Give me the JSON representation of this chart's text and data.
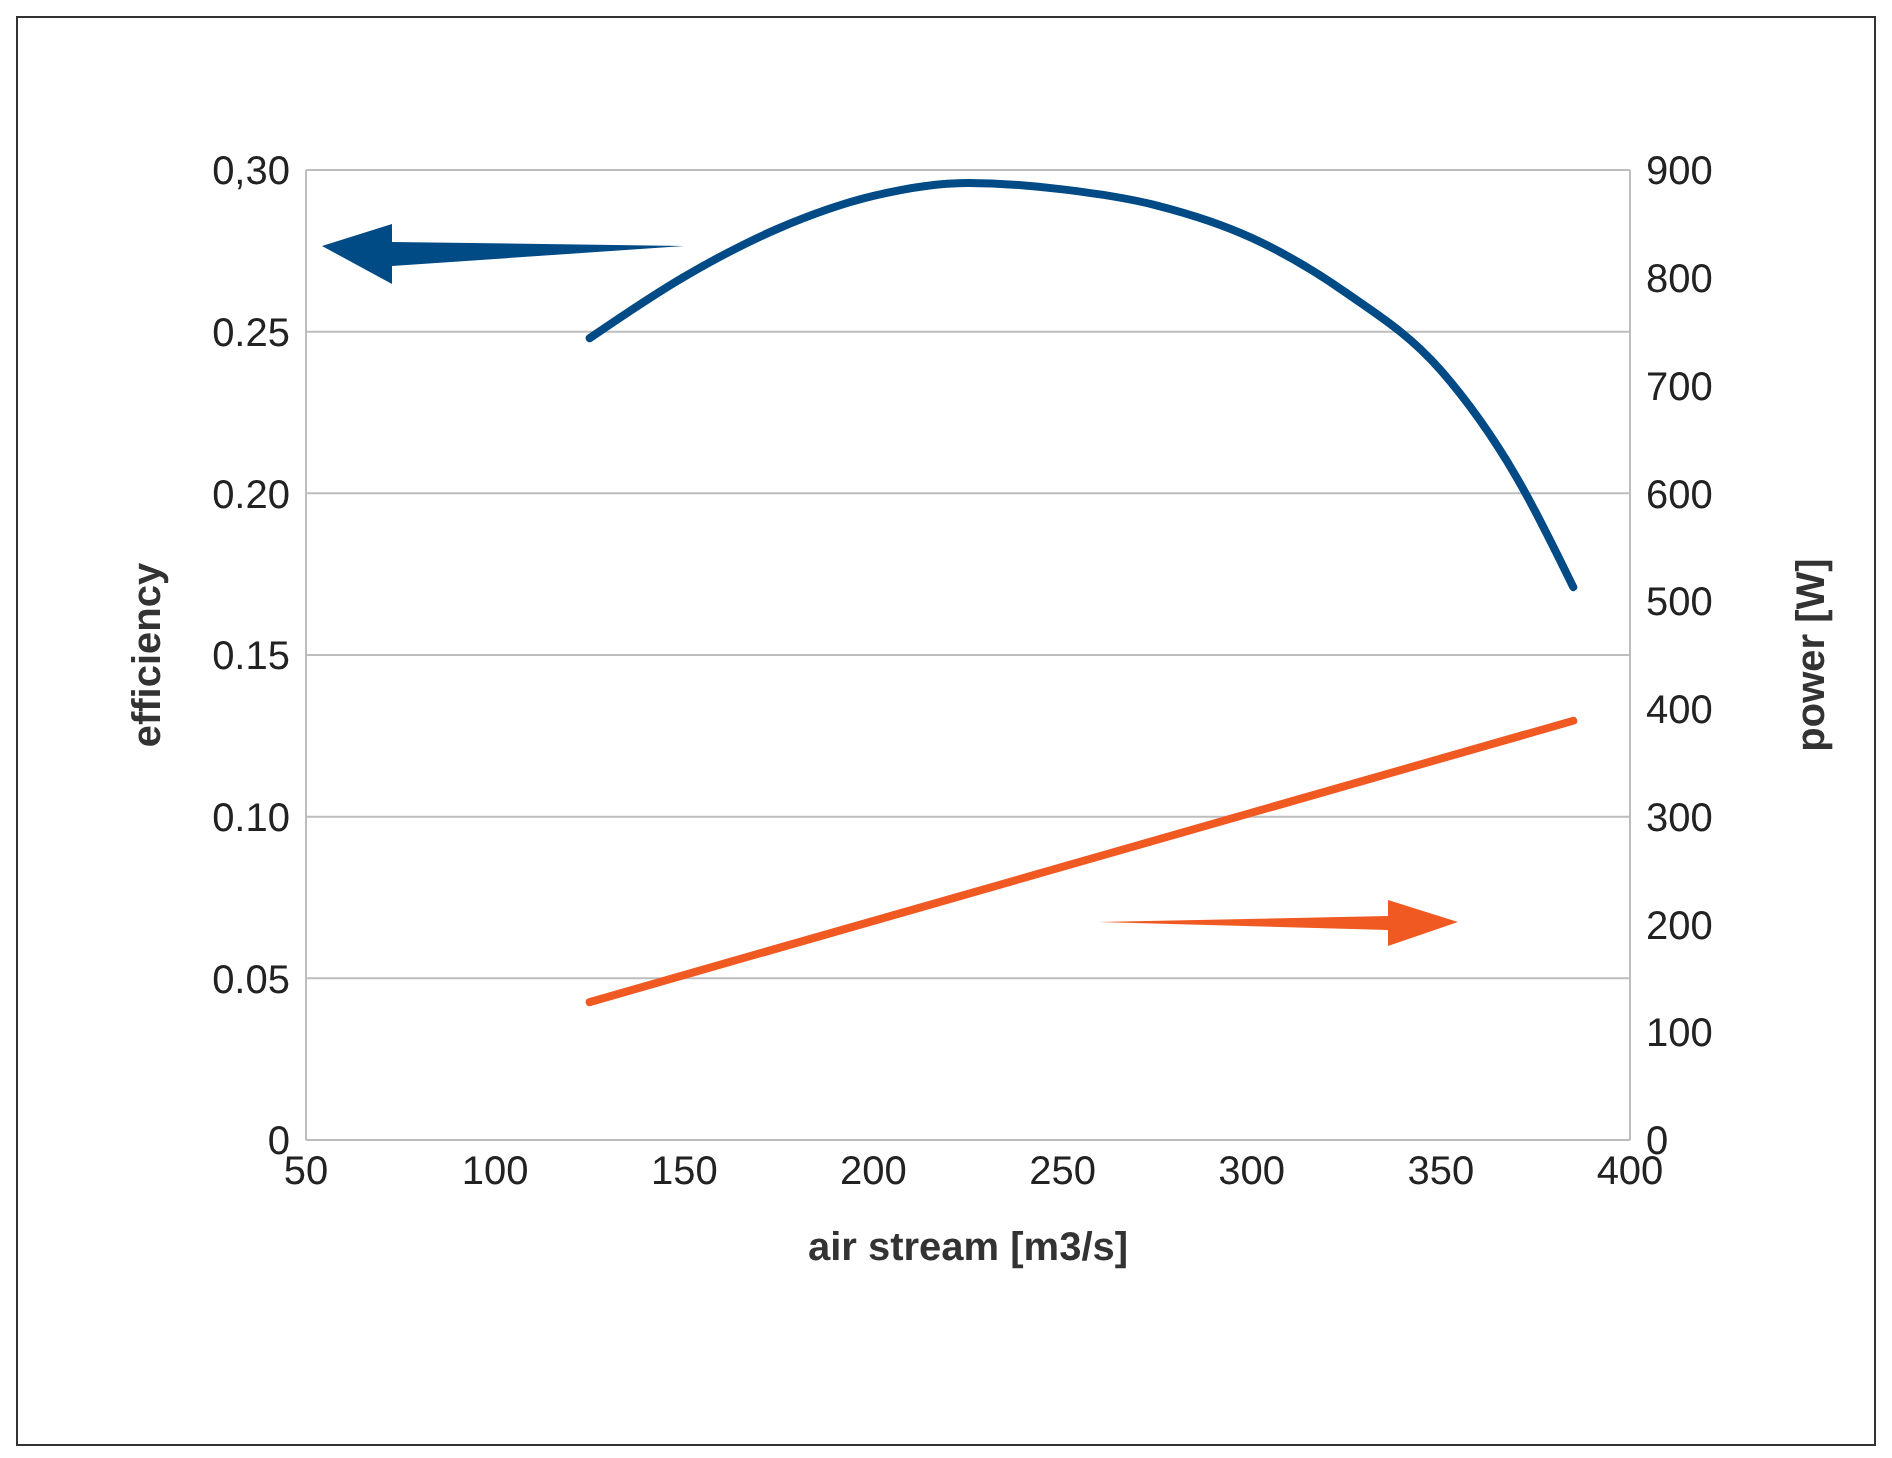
{
  "chart_data": {
    "type": "line",
    "xlabel": "air stream [m3/s]",
    "ylabel": "efficiency",
    "y2label": "power [W]",
    "xlim": [
      50,
      400
    ],
    "xticks": [
      50,
      100,
      150,
      200,
      250,
      300,
      350,
      400
    ],
    "ylim": [
      0,
      0.3
    ],
    "yticks": [
      0,
      {
        "value": 0.05,
        "label": "0.05"
      },
      {
        "value": 0.1,
        "label": "0.10"
      },
      {
        "value": 0.15,
        "label": "0.15"
      },
      {
        "value": 0.2,
        "label": "0.20"
      },
      {
        "value": 0.25,
        "label": "0.25"
      },
      {
        "value": 0.3,
        "label": "0,30"
      }
    ],
    "y2lim": [
      0,
      900
    ],
    "y2ticks": [
      0,
      100,
      200,
      300,
      400,
      500,
      600,
      700,
      800,
      900
    ],
    "grid": "y",
    "line_style": "solid",
    "series": [
      {
        "color": "#004a86",
        "x": [
          125,
          150,
          175,
          200,
          225,
          250,
          275,
          300,
          325,
          350,
          370,
          385
        ],
        "values": [
          0.248,
          0.267,
          0.282,
          0.292,
          0.296,
          0.294,
          0.289,
          0.279,
          0.262,
          0.238,
          0.205,
          0.171
        ]
      },
      {
        "color": "#f05a22",
        "axis": "y2",
        "x": [
          125,
          385
        ],
        "values": [
          128,
          389
        ]
      }
    ]
  }
}
